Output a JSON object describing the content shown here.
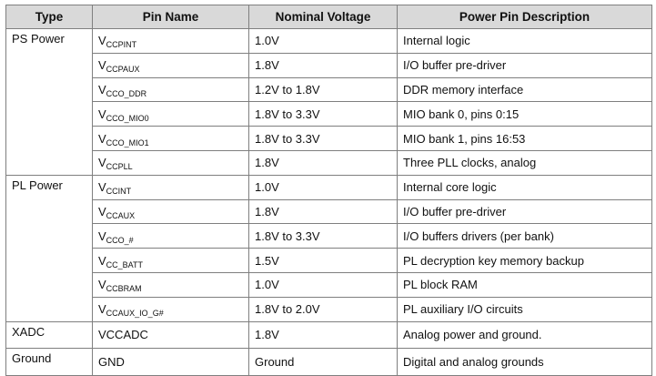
{
  "table": {
    "headers": [
      "Type",
      "Pin Name",
      "Nominal Voltage",
      "Power Pin Description"
    ],
    "groups": [
      {
        "type": "PS Power",
        "rows": [
          {
            "pin": "V",
            "pin_sub": "CCPINT",
            "voltage": "1.0V",
            "desc": "Internal logic"
          },
          {
            "pin": "V",
            "pin_sub": "CCPAUX",
            "voltage": "1.8V",
            "desc": "I/O buffer pre-driver"
          },
          {
            "pin": "V",
            "pin_sub": "CCO_DDR",
            "voltage": "1.2V to 1.8V",
            "desc": "DDR memory interface"
          },
          {
            "pin": "V",
            "pin_sub": "CCO_MIO0",
            "voltage": "1.8V to 3.3V",
            "desc": "MIO bank 0, pins 0:15"
          },
          {
            "pin": "V",
            "pin_sub": "CCO_MIO1",
            "voltage": "1.8V to 3.3V",
            "desc": "MIO bank 1, pins 16:53"
          },
          {
            "pin": "V",
            "pin_sub": "CCPLL",
            "voltage": "1.8V",
            "desc": "Three PLL clocks, analog"
          }
        ]
      },
      {
        "type": "PL Power",
        "rows": [
          {
            "pin": "V",
            "pin_sub": "CCINT",
            "voltage": "1.0V",
            "desc": "Internal core logic"
          },
          {
            "pin": "V",
            "pin_sub": "CCAUX",
            "voltage": "1.8V",
            "desc": "I/O buffer pre-driver"
          },
          {
            "pin": "V",
            "pin_sub": "CCO_#",
            "voltage": "1.8V to 3.3V",
            "desc": "I/O buffers drivers (per bank)"
          },
          {
            "pin": "V",
            "pin_sub": "CC_BATT",
            "voltage": "1.5V",
            "desc": "PL decryption key memory backup"
          },
          {
            "pin": "V",
            "pin_sub": "CCBRAM",
            "voltage": "1.0V",
            "desc": "PL block RAM"
          },
          {
            "pin": "V",
            "pin_sub": "CCAUX_IO_G#",
            "voltage": "1.8V to 2.0V",
            "desc": "PL auxiliary I/O circuits"
          }
        ]
      },
      {
        "type": "XADC",
        "rows": [
          {
            "pin": "VCCADC",
            "pin_sub": "",
            "voltage": "1.8V",
            "desc": "Analog power and ground."
          }
        ]
      },
      {
        "type": "Ground",
        "rows": [
          {
            "pin": "GND",
            "pin_sub": "",
            "voltage": "Ground",
            "desc": "Digital and analog grounds"
          }
        ]
      }
    ]
  }
}
